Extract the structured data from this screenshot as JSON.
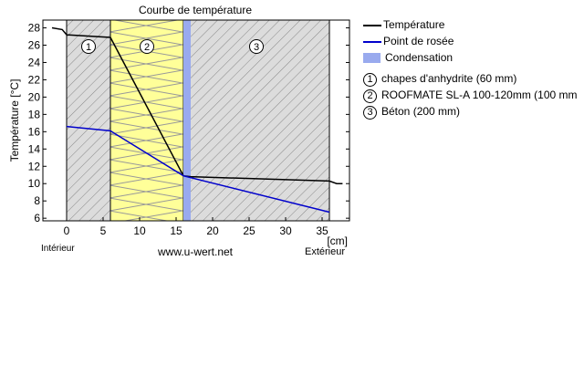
{
  "chart_data": {
    "type": "line",
    "title": "Courbe de température",
    "xlabel": "[cm]",
    "ylabel": "Température [°C]",
    "xlim": [
      -3.25,
      38.75
    ],
    "ylim": [
      5.7,
      28.9
    ],
    "xticks": [
      0,
      5,
      10,
      15,
      20,
      25,
      30,
      35
    ],
    "yticks": [
      6,
      8,
      10,
      12,
      14,
      16,
      18,
      20,
      22,
      24,
      26,
      28
    ],
    "series": [
      {
        "name": "Température",
        "color": "#000000",
        "points": [
          [
            -2,
            28
          ],
          [
            -0.6,
            27.8
          ],
          [
            0,
            27.2
          ],
          [
            6,
            26.9
          ],
          [
            16,
            10.9
          ],
          [
            17,
            10.8
          ],
          [
            36,
            10.3
          ],
          [
            37,
            10.0
          ],
          [
            37.8,
            10.0
          ]
        ]
      },
      {
        "name": "Point de rosée",
        "color": "#0000cc",
        "points": [
          [
            0,
            16.6
          ],
          [
            6,
            16.1
          ],
          [
            16,
            10.9
          ],
          [
            36,
            6.7
          ]
        ]
      }
    ],
    "condensation": {
      "name": "Condensation",
      "color": "#99aaee",
      "range": [
        16,
        17
      ]
    },
    "layers": [
      {
        "num": "1",
        "label": "chapes d'anhydrite (60 mm)",
        "range": [
          0,
          6
        ],
        "type": "hatch"
      },
      {
        "num": "2",
        "label": "ROOFMATE SL-A 100-120mm (100 mm",
        "range": [
          6,
          16
        ],
        "type": "insulation"
      },
      {
        "num": "3",
        "label": "Béton (200 mm)",
        "range": [
          16,
          36
        ],
        "type": "hatch"
      }
    ],
    "footer": {
      "left": "Intérieur",
      "center": "www.u-wert.net",
      "right": "Extérieur"
    }
  }
}
